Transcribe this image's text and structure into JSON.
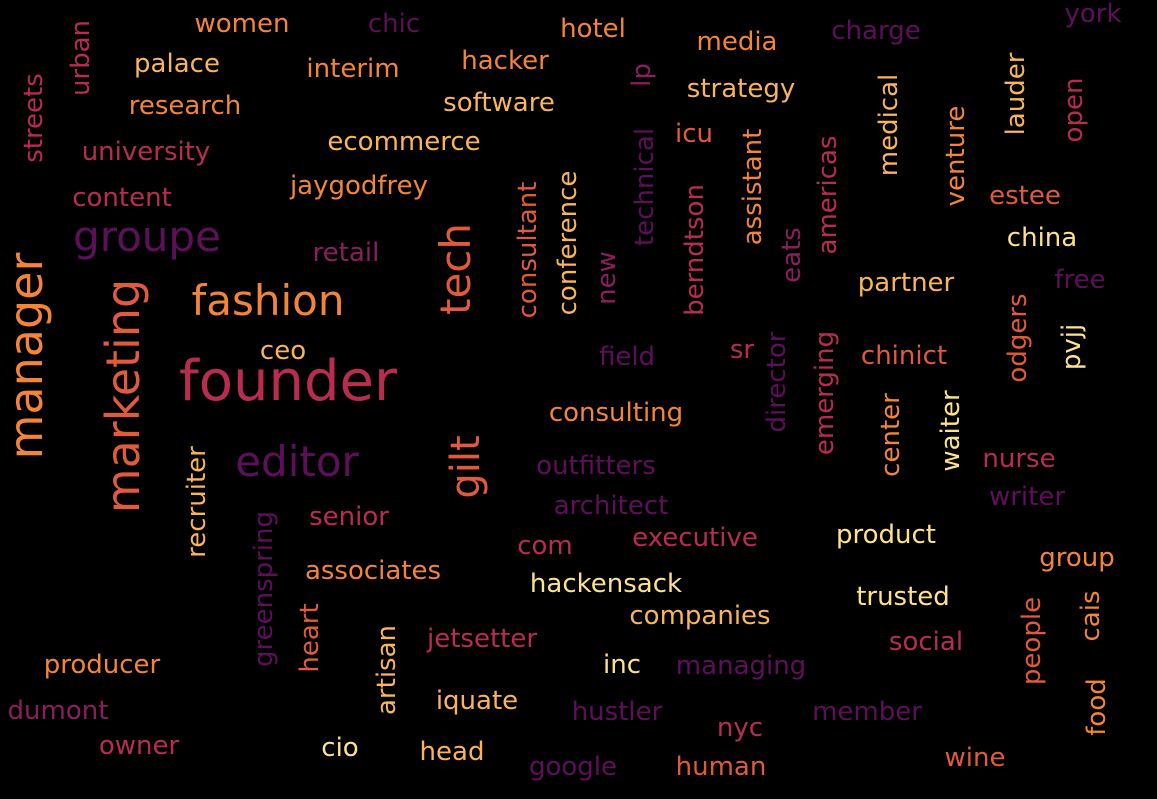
{
  "palette": {
    "c1": "#5e0f5a",
    "c2": "#8a1f5e",
    "c3": "#b82d4f",
    "c4": "#e05a3c",
    "c5": "#f2853a",
    "c6": "#f9b55a",
    "c7": "#fce38a"
  },
  "words": [
    {
      "text": "founder"
    },
    {
      "text": "manager"
    },
    {
      "text": "marketing"
    },
    {
      "text": "fashion"
    },
    {
      "text": "groupe"
    },
    {
      "text": "editor"
    },
    {
      "text": "tech"
    },
    {
      "text": "gilt"
    },
    {
      "text": "women"
    },
    {
      "text": "chic"
    },
    {
      "text": "hotel"
    },
    {
      "text": "media"
    },
    {
      "text": "charge"
    },
    {
      "text": "york"
    },
    {
      "text": "palace"
    },
    {
      "text": "interim"
    },
    {
      "text": "hacker"
    },
    {
      "text": "urban"
    },
    {
      "text": "research"
    },
    {
      "text": "software"
    },
    {
      "text": "strategy"
    },
    {
      "text": "lp"
    },
    {
      "text": "streets"
    },
    {
      "text": "university"
    },
    {
      "text": "ecommerce"
    },
    {
      "text": "icu"
    },
    {
      "text": "medical"
    },
    {
      "text": "lauder"
    },
    {
      "text": "open"
    },
    {
      "text": "venture"
    },
    {
      "text": "content"
    },
    {
      "text": "jaygodfrey"
    },
    {
      "text": "estee"
    },
    {
      "text": "china"
    },
    {
      "text": "retail"
    },
    {
      "text": "consultant"
    },
    {
      "text": "conference"
    },
    {
      "text": "technical"
    },
    {
      "text": "berndtson"
    },
    {
      "text": "assistant"
    },
    {
      "text": "americas"
    },
    {
      "text": "new"
    },
    {
      "text": "eats"
    },
    {
      "text": "partner"
    },
    {
      "text": "free"
    },
    {
      "text": "odgers"
    },
    {
      "text": "pvjj"
    },
    {
      "text": "ceo"
    },
    {
      "text": "field"
    },
    {
      "text": "sr"
    },
    {
      "text": "chinict"
    },
    {
      "text": "emerging"
    },
    {
      "text": "director"
    },
    {
      "text": "consulting"
    },
    {
      "text": "center"
    },
    {
      "text": "waiter"
    },
    {
      "text": "nurse"
    },
    {
      "text": "outfitters"
    },
    {
      "text": "writer"
    },
    {
      "text": "recruiter"
    },
    {
      "text": "architect"
    },
    {
      "text": "senior"
    },
    {
      "text": "greenspring"
    },
    {
      "text": "executive"
    },
    {
      "text": "product"
    },
    {
      "text": "com"
    },
    {
      "text": "group"
    },
    {
      "text": "associates"
    },
    {
      "text": "hackensack"
    },
    {
      "text": "trusted"
    },
    {
      "text": "companies"
    },
    {
      "text": "people"
    },
    {
      "text": "cais"
    },
    {
      "text": "heart"
    },
    {
      "text": "jetsetter"
    },
    {
      "text": "social"
    },
    {
      "text": "producer"
    },
    {
      "text": "artisan"
    },
    {
      "text": "inc"
    },
    {
      "text": "managing"
    },
    {
      "text": "food"
    },
    {
      "text": "iquate"
    },
    {
      "text": "dumont"
    },
    {
      "text": "hustler"
    },
    {
      "text": "member"
    },
    {
      "text": "nyc"
    },
    {
      "text": "owner"
    },
    {
      "text": "cio"
    },
    {
      "text": "head"
    },
    {
      "text": "wine"
    },
    {
      "text": "google"
    },
    {
      "text": "human"
    }
  ]
}
